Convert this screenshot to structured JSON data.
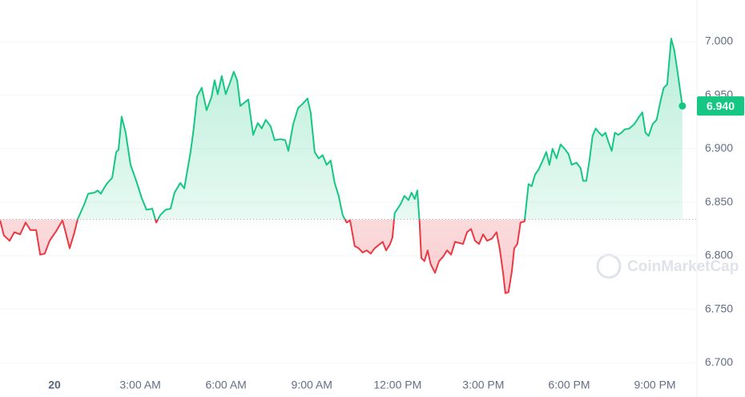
{
  "chart_data": {
    "type": "line",
    "x": [
      -1.9,
      -1.77,
      -1.57,
      -1.4,
      -1.2,
      -1.01,
      -0.84,
      -0.64,
      -0.5,
      -0.34,
      -0.17,
      0.06,
      0.28,
      0.39,
      0.53,
      0.7,
      0.81,
      1.04,
      1.18,
      1.4,
      1.51,
      1.62,
      1.82,
      2.02,
      2.16,
      2.24,
      2.35,
      2.49,
      2.66,
      2.86,
      3.05,
      3.22,
      3.42,
      3.56,
      3.7,
      3.89,
      4.06,
      4.2,
      4.4,
      4.54,
      4.76,
      4.87,
      4.99,
      5.15,
      5.32,
      5.49,
      5.6,
      5.71,
      5.85,
      5.99,
      6.13,
      6.27,
      6.39,
      6.5,
      6.64,
      6.78,
      6.95,
      7.11,
      7.25,
      7.39,
      7.56,
      7.7,
      7.9,
      8.07,
      8.18,
      8.35,
      8.52,
      8.68,
      8.85,
      8.96,
      9.1,
      9.24,
      9.38,
      9.52,
      9.66,
      9.8,
      9.94,
      10.08,
      10.22,
      10.34,
      10.5,
      10.64,
      10.78,
      10.92,
      11.06,
      11.2,
      11.34,
      11.48,
      11.6,
      11.74,
      11.82,
      11.9,
      12.1,
      12.24,
      12.38,
      12.49,
      12.6,
      12.69,
      12.77,
      12.83,
      12.94,
      13.05,
      13.16,
      13.31,
      13.45,
      13.59,
      13.73,
      13.87,
      14.01,
      14.15,
      14.29,
      14.43,
      14.57,
      14.71,
      14.85,
      14.99,
      15.13,
      15.3,
      15.46,
      15.57,
      15.69,
      15.77,
      15.88,
      16.0,
      16.08,
      16.19,
      16.3,
      16.44,
      16.58,
      16.69,
      16.81,
      16.92,
      17.06,
      17.2,
      17.31,
      17.42,
      17.56,
      17.7,
      17.84,
      17.98,
      18.09,
      18.26,
      18.4,
      18.49,
      18.6,
      18.71,
      18.82,
      18.93,
      19.05,
      19.16,
      19.27,
      19.38,
      19.49,
      19.6,
      19.72,
      19.83,
      19.94,
      20.11,
      20.28,
      20.45,
      20.56,
      20.67,
      20.78,
      20.92,
      21.06,
      21.2,
      21.31,
      21.43,
      21.57,
      21.68,
      21.79,
      21.96
    ],
    "values": [
      6.833,
      6.819,
      6.814,
      6.822,
      6.82,
      6.831,
      6.824,
      6.824,
      6.801,
      6.802,
      6.814,
      6.823,
      6.833,
      6.822,
      6.807,
      6.822,
      6.834,
      6.848,
      6.858,
      6.859,
      6.861,
      6.858,
      6.867,
      6.873,
      6.897,
      6.899,
      6.93,
      6.915,
      6.885,
      6.87,
      6.854,
      6.843,
      6.844,
      6.831,
      6.838,
      6.843,
      6.844,
      6.859,
      6.868,
      6.863,
      6.897,
      6.919,
      6.949,
      6.957,
      6.936,
      6.948,
      6.964,
      6.951,
      6.968,
      6.951,
      6.961,
      6.972,
      6.964,
      6.94,
      6.943,
      6.946,
      6.913,
      6.924,
      6.919,
      6.927,
      6.921,
      6.908,
      6.909,
      6.908,
      6.898,
      6.923,
      6.938,
      6.942,
      6.947,
      6.934,
      6.897,
      6.891,
      6.894,
      6.885,
      6.889,
      6.868,
      6.856,
      6.838,
      6.831,
      6.833,
      6.809,
      6.807,
      6.803,
      6.805,
      6.802,
      6.807,
      6.81,
      6.813,
      6.805,
      6.811,
      6.817,
      6.84,
      6.848,
      6.856,
      6.852,
      6.859,
      6.853,
      6.861,
      6.831,
      6.798,
      6.795,
      6.805,
      6.792,
      6.784,
      6.795,
      6.799,
      6.805,
      6.801,
      6.813,
      6.812,
      6.811,
      6.822,
      6.825,
      6.814,
      6.811,
      6.82,
      6.814,
      6.816,
      6.822,
      6.807,
      6.784,
      6.765,
      6.766,
      6.786,
      6.807,
      6.811,
      6.831,
      6.832,
      6.867,
      6.865,
      6.876,
      6.88,
      6.888,
      6.897,
      6.885,
      6.9,
      6.891,
      6.904,
      6.9,
      6.895,
      6.885,
      6.887,
      6.882,
      6.87,
      6.87,
      6.889,
      6.912,
      6.919,
      6.915,
      6.912,
      6.915,
      6.906,
      6.898,
      6.915,
      6.913,
      6.915,
      6.918,
      6.919,
      6.923,
      6.93,
      6.934,
      6.915,
      6.912,
      6.923,
      6.927,
      6.945,
      6.957,
      6.96,
      7.003,
      6.992,
      6.972,
      6.94
    ],
    "baseline": 6.834,
    "up_color": "#16c784",
    "down_color": "#ea3943",
    "last_price": {
      "value": 6.94,
      "label": "6.940"
    },
    "xlim": [
      -1.905,
      22.47
    ],
    "ylim": [
      6.668,
      7.039
    ],
    "xticks": [
      {
        "value": 0,
        "label": "20"
      },
      {
        "value": 3,
        "label": "3:00 AM"
      },
      {
        "value": 6,
        "label": "6:00 AM"
      },
      {
        "value": 9,
        "label": "9:00 AM"
      },
      {
        "value": 12,
        "label": "12:00 PM"
      },
      {
        "value": 15,
        "label": "3:00 PM"
      },
      {
        "value": 18,
        "label": "6:00 PM"
      },
      {
        "value": 21,
        "label": "9:00 PM"
      }
    ],
    "yticks": [
      {
        "value": 6.7,
        "label": "6.700"
      },
      {
        "value": 6.75,
        "label": "6.750"
      },
      {
        "value": 6.8,
        "label": "6.800"
      },
      {
        "value": 6.85,
        "label": "6.850"
      },
      {
        "value": 6.9,
        "label": "6.900"
      },
      {
        "value": 6.95,
        "label": "6.950"
      },
      {
        "value": 7.0,
        "label": "7.000"
      }
    ],
    "grid": true,
    "watermark": "CoinMarketCap"
  }
}
